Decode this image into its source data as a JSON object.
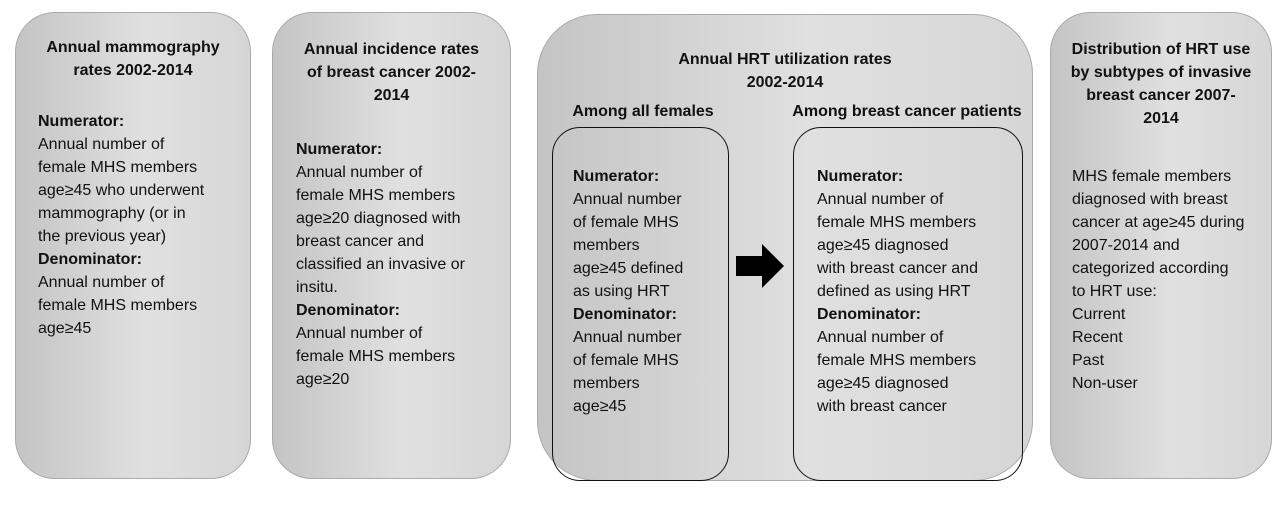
{
  "boxes": [
    {
      "title": [
        "Annual mammography",
        "rates 2002-2014"
      ],
      "sections": [
        {
          "heading": "Numerator:",
          "lines": [
            "Annual number of",
            "female MHS members",
            "age≥45 who underwent",
            "mammography (or in",
            "the previous year)"
          ]
        },
        {
          "heading": "Denominator:",
          "lines": [
            "Annual number of",
            "female MHS members",
            "age≥45"
          ]
        }
      ]
    },
    {
      "title": [
        "Annual incidence rates",
        "of breast cancer 2002-",
        "2014"
      ],
      "sections": [
        {
          "heading": "Numerator:",
          "lines": [
            "Annual number of",
            "female MHS members",
            "age≥20 diagnosed with",
            "breast cancer and",
            "classified an invasive or",
            "insitu."
          ]
        },
        {
          "heading": "Denominator:",
          "lines": [
            "Annual number of",
            "female MHS members",
            "age≥20"
          ]
        }
      ]
    },
    {
      "title": [
        "Annual HRT utilization rates",
        "2002-2014"
      ],
      "panels": [
        {
          "heading": "Among all females",
          "sections": [
            {
              "heading": "Numerator:",
              "lines": [
                "Annual number",
                "of female MHS",
                "members",
                "age≥45 defined",
                "as using HRT"
              ]
            },
            {
              "heading": "Denominator:",
              "lines": [
                "Annual number",
                "of female MHS",
                "members",
                "age≥45"
              ]
            }
          ]
        },
        {
          "heading": "Among breast cancer patients",
          "sections": [
            {
              "heading": "Numerator:",
              "lines": [
                "Annual number of",
                "female MHS members",
                "age≥45 diagnosed",
                "with breast cancer and",
                "defined as using HRT"
              ]
            },
            {
              "heading": "Denominator:",
              "lines": [
                "Annual number of",
                "female MHS members",
                "age≥45 diagnosed",
                "with breast cancer"
              ]
            }
          ]
        }
      ]
    },
    {
      "title": [
        "Distribution of HRT use",
        "by subtypes of invasive",
        "breast cancer 2007-",
        "2014"
      ],
      "lines": [
        "MHS female members",
        "diagnosed with breast",
        "cancer at age≥45 during",
        "2007-2014 and",
        "categorized according",
        "to HRT use:",
        "Current",
        "Recent",
        "Past",
        "Non-user"
      ]
    }
  ]
}
